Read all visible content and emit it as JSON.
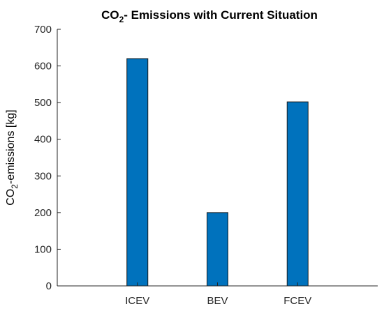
{
  "chart_data": {
    "type": "bar",
    "title": {
      "main": "CO",
      "sub": "2",
      "rest": "- Emissions with Current Situation"
    },
    "ylabel": {
      "main": "CO",
      "sub": "2",
      "rest": "-emissions [kg]"
    },
    "xlabel": "",
    "categories": [
      "ICEV",
      "BEV",
      "FCEV"
    ],
    "values": [
      620,
      200,
      502
    ],
    "ylim": [
      0,
      700
    ],
    "yticks": [
      0,
      100,
      200,
      300,
      400,
      500,
      600,
      700
    ],
    "bar_color": "#0072BD",
    "grid": false
  }
}
